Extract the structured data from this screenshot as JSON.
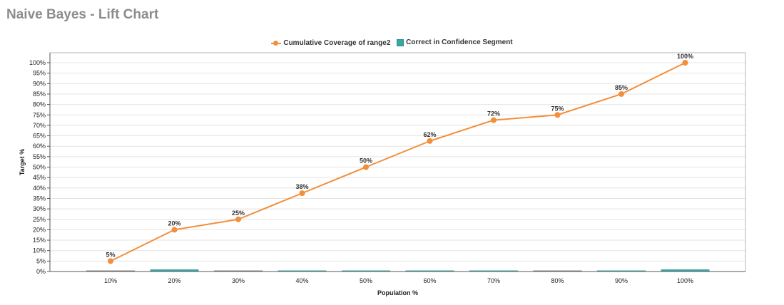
{
  "title": "Naive Bayes - Lift Chart",
  "legend": {
    "line_label": "Cumulative Coverage of range2",
    "bar_label": "Correct in Confidence Segment"
  },
  "colors": {
    "line": "#f28f3b",
    "bar": "#3aa6a4",
    "bar_dark": "#8a8a8a",
    "grid": "#e4e4e4",
    "title": "#8c8c8c"
  },
  "chart_data": {
    "type": "line",
    "title": "Naive Bayes - Lift Chart",
    "xlabel": "Population %",
    "ylabel": "Target %",
    "categories": [
      "10%",
      "20%",
      "30%",
      "40%",
      "50%",
      "60%",
      "70%",
      "80%",
      "90%",
      "100%"
    ],
    "yticks": [
      "0%",
      "5%",
      "10%",
      "15%",
      "20%",
      "25%",
      "30%",
      "35%",
      "40%",
      "45%",
      "50%",
      "55%",
      "60%",
      "65%",
      "70%",
      "75%",
      "80%",
      "85%",
      "90%",
      "95%",
      "100%"
    ],
    "ylim": [
      0,
      100
    ],
    "grid": true,
    "legend_position": "top",
    "series": [
      {
        "name": "Cumulative Coverage of range2",
        "type": "line",
        "values": [
          5,
          20,
          25,
          37.5,
          50,
          62.5,
          72.5,
          75,
          85,
          100
        ],
        "data_labels": [
          "5%",
          "20%",
          "25%",
          "38%",
          "50%",
          "62%",
          "72%",
          "75%",
          "85%",
          "100%"
        ]
      },
      {
        "name": "Correct in Confidence Segment",
        "type": "bar",
        "values": [
          0,
          1,
          0,
          0.5,
          0.5,
          0.5,
          0.5,
          0,
          0.5,
          1
        ]
      }
    ]
  }
}
